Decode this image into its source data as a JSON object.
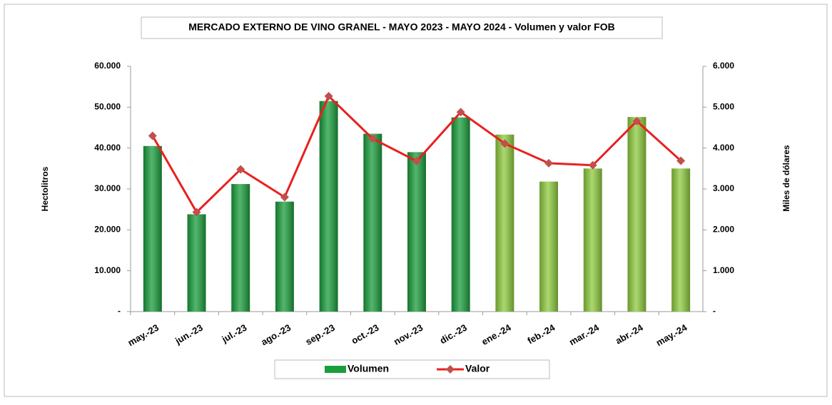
{
  "chart_data": {
    "type": "bar",
    "title": "MERCADO EXTERNO DE VINO GRANEL - MAYO 2023 - MAYO 2024 - Volumen y valor FOB",
    "ylabel": "Hectolitros",
    "y2label": "Miles de dólares",
    "categories": [
      "may.-23",
      "jun.-23",
      "jul.-23",
      "ago.-23",
      "sep.-23",
      "oct.-23",
      "nov.-23",
      "dic.-23",
      "ene.-24",
      "feb.-24",
      "mar.-24",
      "abr.-24",
      "may.-24"
    ],
    "series": [
      {
        "name": "Volumen",
        "type": "bar",
        "color": "#1a9e3c",
        "colors": [
          "#1a9e3c",
          "#1a9e3c",
          "#1a9e3c",
          "#1a9e3c",
          "#1a9e3c",
          "#1a9e3c",
          "#1a9e3c",
          "#1a9e3c",
          "#8fcc3e",
          "#8fcc3e",
          "#8fcc3e",
          "#8fcc3e",
          "#8fcc3e"
        ],
        "values": [
          40500,
          23800,
          31200,
          26900,
          51500,
          43500,
          39000,
          47500,
          43300,
          31800,
          35000,
          47600,
          35000
        ]
      },
      {
        "name": "Valor",
        "type": "line",
        "axis": "y2",
        "color": "#e8211f",
        "marker_color": "#c0504d",
        "values": [
          4300,
          2430,
          3480,
          2800,
          5270,
          4230,
          3680,
          4880,
          4110,
          3630,
          3580,
          4660,
          3690
        ]
      }
    ],
    "ylim": [
      0,
      60000
    ],
    "yticks": [
      {
        "value": 0,
        "label": "-"
      },
      {
        "value": 10000,
        "label": "10.000"
      },
      {
        "value": 20000,
        "label": "20.000"
      },
      {
        "value": 30000,
        "label": "30.000"
      },
      {
        "value": 40000,
        "label": "40.000"
      },
      {
        "value": 50000,
        "label": "50.000"
      },
      {
        "value": 60000,
        "label": "60.000"
      }
    ],
    "y2lim": [
      0,
      6000
    ],
    "y2ticks": [
      {
        "value": 0,
        "label": "-"
      },
      {
        "value": 1000,
        "label": "1.000"
      },
      {
        "value": 2000,
        "label": "2.000"
      },
      {
        "value": 3000,
        "label": "3.000"
      },
      {
        "value": 4000,
        "label": "4.000"
      },
      {
        "value": 5000,
        "label": "5.000"
      },
      {
        "value": 6000,
        "label": "6.000"
      }
    ]
  }
}
